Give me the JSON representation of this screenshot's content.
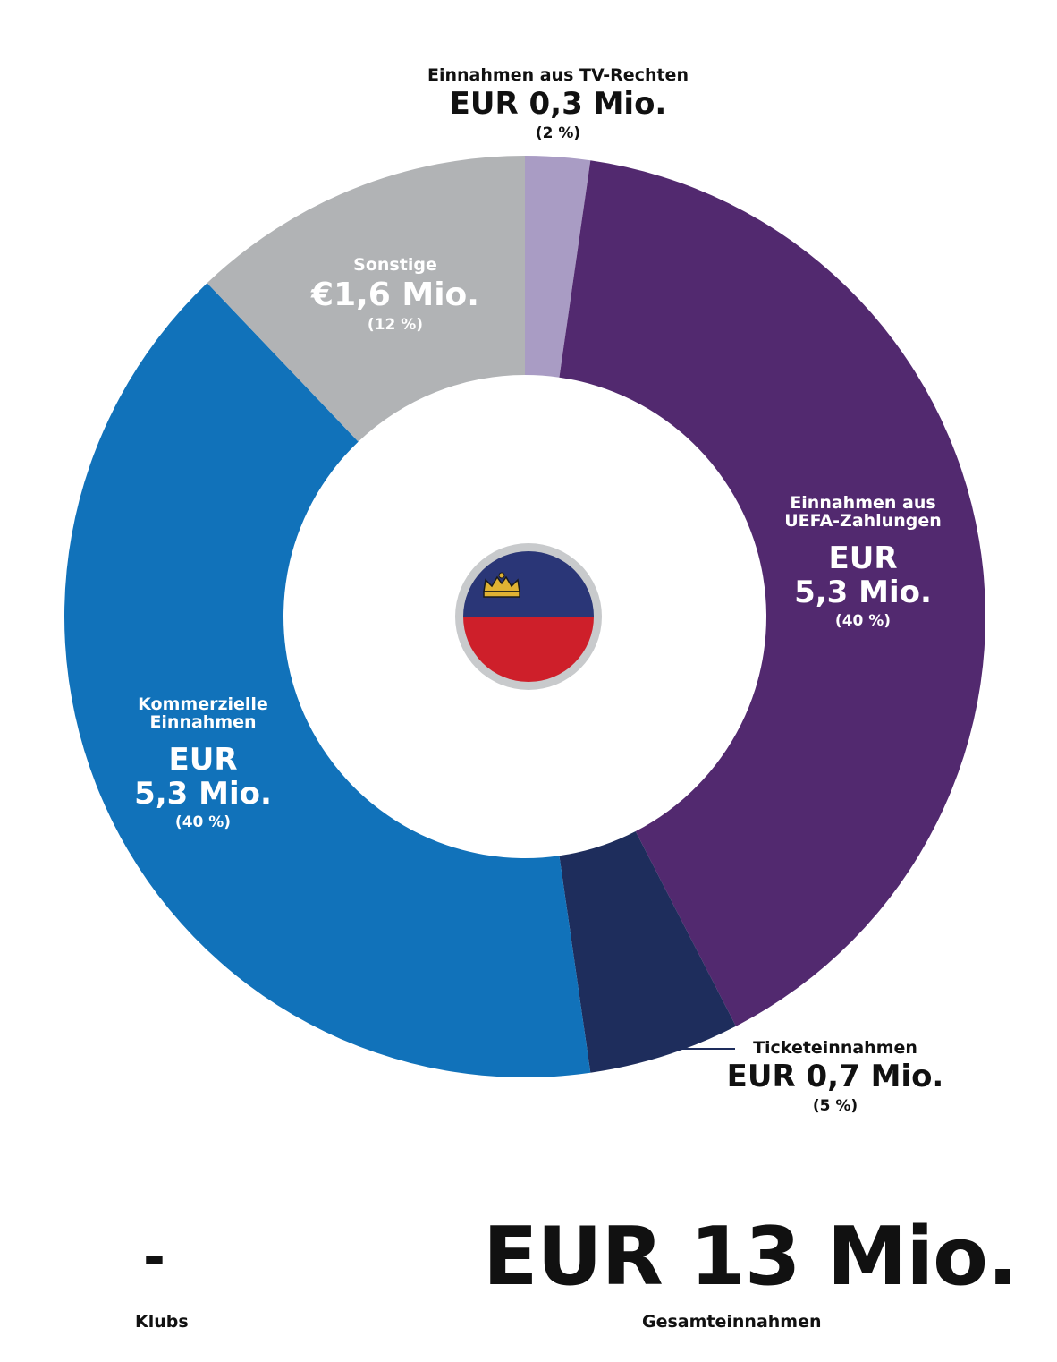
{
  "chart_data": {
    "type": "pie",
    "variant": "donut",
    "categories": [
      "Einnahmen aus TV-Rechten",
      "Einnahmen aus UEFA-Zahlungen",
      "Ticketeinnahmen",
      "Kommerzielle Einnahmen",
      "Sonstige"
    ],
    "values": [
      0.3,
      5.3,
      0.7,
      5.3,
      1.6
    ],
    "percents": [
      2,
      40,
      5,
      40,
      12
    ],
    "colors": [
      "#A99CC4",
      "#52296F",
      "#1E2D5C",
      "#1172BA",
      "#B1B3B5"
    ],
    "labels": {
      "tv": {
        "category": "Einnahmen aus TV-Rechten",
        "value": "EUR 0,3 Mio.",
        "percent": "(2 %)"
      },
      "uefa": {
        "category_line1": "Einnahmen aus",
        "category_line2": "UEFA-Zahlungen",
        "value_line1": "EUR",
        "value_line2": "5,3 Mio.",
        "percent": "(40 %)"
      },
      "ticket": {
        "category": "Ticketeinnahmen",
        "value": "EUR 0,7 Mio.",
        "percent": "(5 %)"
      },
      "commercial": {
        "category_line1": "Kommerzielle",
        "category_line2": "Einnahmen",
        "value_line1": "EUR",
        "value_line2": "5,3 Mio.",
        "percent": "(40 %)"
      },
      "other": {
        "category": "Sonstige",
        "value": "€1,6 Mio.",
        "percent": "(12 %)"
      }
    }
  },
  "flag": {
    "top_color": "#2A3677",
    "bottom_color": "#CE1F2A",
    "ring_color": "#C8CACC",
    "emblem": "crown-icon"
  },
  "summary": {
    "total_value": "EUR 13 Mio.",
    "total_label": "Gesamteinnahmen",
    "clubs_value": "-",
    "clubs_label": "Klubs"
  }
}
